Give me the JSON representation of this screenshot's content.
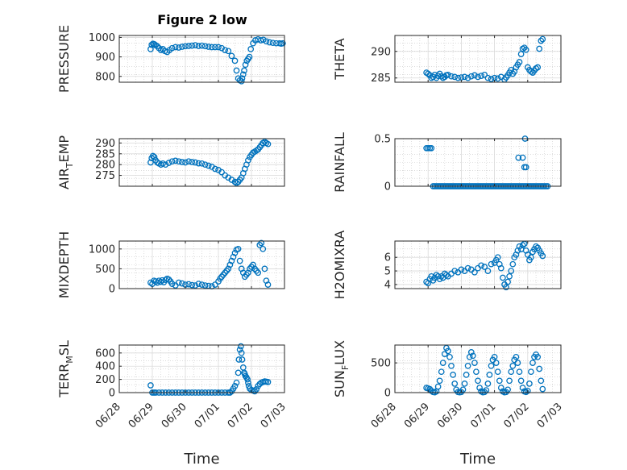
{
  "figure": {
    "title": "Figure 2 low",
    "marker_color": "#0072BD",
    "axis_color": "#262626",
    "grid_color": "#c8c8c8"
  },
  "chart_data": [
    {
      "type": "scatter",
      "ylabel": "PRESSURE",
      "ylabel_sub": "",
      "ylabel_tail": "",
      "ylim": [
        770,
        1010
      ],
      "yticks": [
        800,
        900,
        1000
      ],
      "grid": true,
      "xticks_shown": false,
      "x": [
        0.95,
        0.98,
        1.02,
        1.06,
        1.1,
        1.15,
        1.2,
        1.26,
        1.32,
        1.38,
        1.45,
        1.52,
        1.6,
        1.7,
        1.8,
        1.9,
        2.0,
        2.1,
        2.2,
        2.3,
        2.4,
        2.5,
        2.6,
        2.7,
        2.8,
        2.9,
        3.0,
        3.1,
        3.2,
        3.3,
        3.4,
        3.5,
        3.55,
        3.6,
        3.65,
        3.7,
        3.72,
        3.75,
        3.78,
        3.82,
        3.86,
        3.9,
        3.94,
        3.98,
        4.05,
        4.12,
        4.2,
        4.28,
        4.36,
        4.45,
        4.55,
        4.65,
        4.75,
        4.85,
        4.9,
        4.95
      ],
      "y": [
        940,
        962,
        968,
        965,
        960,
        955,
        945,
        935,
        940,
        930,
        925,
        935,
        945,
        950,
        948,
        952,
        955,
        956,
        958,
        960,
        956,
        958,
        955,
        952,
        950,
        950,
        950,
        945,
        935,
        930,
        905,
        880,
        830,
        790,
        780,
        775,
        790,
        810,
        830,
        860,
        880,
        890,
        900,
        940,
        970,
        985,
        990,
        985,
        988,
        980,
        975,
        972,
        970,
        970,
        968,
        970
      ]
    },
    {
      "type": "scatter",
      "ylabel": "THETA",
      "ylabel_sub": "",
      "ylabel_tail": "",
      "ylim": [
        284.2,
        293
      ],
      "yticks": [
        285,
        290
      ],
      "grid": true,
      "xticks_shown": false,
      "x": [
        0.95,
        1.0,
        1.05,
        1.1,
        1.15,
        1.2,
        1.25,
        1.3,
        1.35,
        1.4,
        1.45,
        1.5,
        1.55,
        1.6,
        1.7,
        1.8,
        1.9,
        2.0,
        2.1,
        2.2,
        2.3,
        2.4,
        2.5,
        2.6,
        2.7,
        2.8,
        2.9,
        3.0,
        3.1,
        3.2,
        3.3,
        3.35,
        3.4,
        3.45,
        3.5,
        3.55,
        3.6,
        3.65,
        3.7,
        3.75,
        3.8,
        3.85,
        3.9,
        3.95,
        4.0,
        4.05,
        4.1,
        4.15,
        4.2,
        4.25,
        4.3,
        4.35,
        4.4,
        4.45
      ],
      "y": [
        286,
        285.8,
        285.5,
        285,
        285.2,
        285.6,
        285,
        285.4,
        285.8,
        285.3,
        285,
        285.2,
        285.5,
        285.6,
        285.3,
        285.2,
        285,
        285.1,
        285.2,
        285,
        285.3,
        285.5,
        285.2,
        285.4,
        285.6,
        285,
        284.8,
        285,
        284.9,
        285.2,
        284.7,
        285.1,
        285.5,
        286,
        286.5,
        285.8,
        286.2,
        287,
        287.5,
        288,
        289.5,
        290.5,
        290.7,
        290.3,
        287,
        286.5,
        286.2,
        286,
        286.4,
        286.8,
        287,
        290.5,
        292,
        292.3
      ]
    },
    {
      "type": "scatter",
      "ylabel": "AIR",
      "ylabel_sub": "T",
      "ylabel_tail": "EMP",
      "ylim": [
        270,
        292
      ],
      "yticks": [
        275,
        280,
        285,
        290
      ],
      "grid": true,
      "xticks_shown": false,
      "x": [
        0.95,
        0.98,
        1.02,
        1.06,
        1.1,
        1.15,
        1.2,
        1.26,
        1.32,
        1.4,
        1.5,
        1.6,
        1.7,
        1.8,
        1.9,
        2.0,
        2.1,
        2.2,
        2.3,
        2.4,
        2.5,
        2.6,
        2.7,
        2.8,
        2.9,
        3.0,
        3.1,
        3.2,
        3.3,
        3.4,
        3.5,
        3.55,
        3.6,
        3.65,
        3.7,
        3.75,
        3.8,
        3.85,
        3.9,
        3.95,
        4.0,
        4.05,
        4.1,
        4.15,
        4.2,
        4.25,
        4.3,
        4.35,
        4.4,
        4.45,
        4.5
      ],
      "y": [
        281,
        283,
        284,
        283.5,
        282,
        281,
        280.5,
        280,
        280.5,
        280,
        280.8,
        281.5,
        281.8,
        281.5,
        281.2,
        281,
        281.5,
        281.2,
        281,
        280.6,
        280.5,
        280,
        279.5,
        279,
        278,
        277.5,
        276.5,
        275,
        274,
        273,
        272,
        271.5,
        272,
        273,
        274,
        276,
        278,
        280,
        282,
        283.5,
        284.5,
        285.5,
        286,
        286.5,
        287,
        288,
        289,
        290,
        290.5,
        290,
        289.5
      ]
    },
    {
      "type": "scatter",
      "ylabel": "RAINFALL",
      "ylabel_sub": "",
      "ylabel_tail": "",
      "ylim": [
        0,
        0.5
      ],
      "yticks": [
        0,
        0.5
      ],
      "grid": true,
      "xticks_shown": false,
      "x": [
        0.95,
        1.0,
        1.05,
        1.1,
        1.15,
        1.2,
        1.25,
        1.3,
        1.35,
        1.4,
        1.45,
        1.5,
        1.55,
        1.6,
        1.65,
        1.7,
        1.75,
        1.8,
        1.85,
        1.9,
        1.95,
        2.0,
        2.05,
        2.1,
        2.15,
        2.2,
        2.25,
        2.3,
        2.35,
        2.4,
        2.45,
        2.5,
        2.55,
        2.6,
        2.65,
        2.7,
        2.75,
        2.8,
        2.85,
        2.9,
        2.95,
        3.0,
        3.05,
        3.1,
        3.15,
        3.2,
        3.25,
        3.3,
        3.35,
        3.4,
        3.45,
        3.5,
        3.55,
        3.6,
        3.65,
        3.7,
        3.75,
        3.8,
        3.85,
        3.9,
        3.95,
        4.0,
        4.05,
        4.1,
        4.15,
        4.2,
        4.25,
        4.3,
        4.35,
        4.4,
        4.45,
        4.5,
        4.55,
        4.6,
        3.72,
        3.85,
        3.9,
        3.92,
        3.95
      ],
      "y": [
        0.4,
        0.4,
        0.4,
        0.4,
        0,
        0,
        0,
        0,
        0,
        0,
        0,
        0,
        0,
        0,
        0,
        0,
        0,
        0,
        0,
        0,
        0,
        0,
        0,
        0,
        0,
        0,
        0,
        0,
        0,
        0,
        0,
        0,
        0,
        0,
        0,
        0,
        0,
        0,
        0,
        0,
        0,
        0,
        0,
        0,
        0,
        0,
        0,
        0,
        0,
        0,
        0,
        0,
        0,
        0,
        0,
        0,
        0,
        0,
        0,
        0,
        0,
        0,
        0,
        0,
        0,
        0,
        0,
        0,
        0,
        0,
        0,
        0,
        0,
        0,
        0.3,
        0.3,
        0.2,
        0.5,
        0.2
      ]
    },
    {
      "type": "scatter",
      "ylabel": "MIXDEPTH",
      "ylabel_sub": "",
      "ylabel_tail": "",
      "ylim": [
        0,
        1200
      ],
      "yticks": [
        0,
        500,
        1000
      ],
      "grid": true,
      "xticks_shown": false,
      "x": [
        0.95,
        1.0,
        1.05,
        1.1,
        1.15,
        1.2,
        1.25,
        1.3,
        1.35,
        1.4,
        1.45,
        1.5,
        1.55,
        1.6,
        1.7,
        1.8,
        1.9,
        2.0,
        2.1,
        2.2,
        2.3,
        2.4,
        2.5,
        2.6,
        2.7,
        2.8,
        2.9,
        3.0,
        3.05,
        3.1,
        3.15,
        3.2,
        3.25,
        3.3,
        3.35,
        3.4,
        3.45,
        3.5,
        3.55,
        3.6,
        3.65,
        3.7,
        3.75,
        3.8,
        3.85,
        3.9,
        3.95,
        4.0,
        4.05,
        4.1,
        4.15,
        4.2,
        4.25,
        4.3,
        4.35,
        4.4,
        4.45,
        4.5
      ],
      "y": [
        150,
        120,
        200,
        180,
        150,
        200,
        170,
        210,
        160,
        220,
        250,
        230,
        180,
        120,
        80,
        150,
        130,
        100,
        110,
        90,
        80,
        120,
        100,
        80,
        70,
        60,
        100,
        180,
        250,
        300,
        350,
        400,
        450,
        500,
        600,
        700,
        800,
        900,
        980,
        1000,
        700,
        500,
        400,
        300,
        350,
        400,
        500,
        550,
        600,
        500,
        450,
        400,
        1100,
        1150,
        1000,
        500,
        200,
        100
      ]
    },
    {
      "type": "scatter",
      "ylabel": "H2OMIXRA",
      "ylabel_sub": "",
      "ylabel_tail": "",
      "ylim": [
        3.7,
        7.2
      ],
      "yticks": [
        4,
        5,
        6
      ],
      "grid": true,
      "xticks_shown": false,
      "x": [
        0.95,
        1.0,
        1.05,
        1.1,
        1.15,
        1.2,
        1.25,
        1.3,
        1.35,
        1.4,
        1.45,
        1.5,
        1.55,
        1.6,
        1.7,
        1.8,
        1.9,
        2.0,
        2.1,
        2.2,
        2.3,
        2.4,
        2.5,
        2.6,
        2.7,
        2.8,
        2.9,
        3.0,
        3.05,
        3.1,
        3.15,
        3.2,
        3.25,
        3.3,
        3.35,
        3.4,
        3.45,
        3.5,
        3.55,
        3.6,
        3.65,
        3.7,
        3.75,
        3.8,
        3.85,
        3.9,
        3.95,
        4.0,
        4.05,
        4.1,
        4.15,
        4.2,
        4.25,
        4.3,
        4.35,
        4.4,
        4.45
      ],
      "y": [
        4.2,
        4.1,
        4.4,
        4.6,
        4.3,
        4.5,
        4.7,
        4.6,
        4.4,
        4.6,
        4.5,
        4.8,
        4.7,
        4.6,
        4.8,
        5.0,
        4.9,
        5.1,
        5.0,
        5.2,
        5.1,
        4.9,
        5.2,
        5.4,
        5.3,
        5.0,
        5.5,
        5.6,
        5.8,
        6.0,
        5.5,
        5.2,
        4.5,
        4.0,
        3.8,
        4.2,
        4.6,
        5.0,
        5.5,
        6.0,
        6.2,
        6.5,
        6.8,
        6.6,
        6.9,
        7.0,
        6.5,
        6.2,
        5.8,
        6.0,
        6.4,
        6.6,
        6.8,
        6.7,
        6.5,
        6.3,
        6.1
      ]
    },
    {
      "type": "scatter",
      "ylabel": "TERR",
      "ylabel_sub": "M",
      "ylabel_tail": "SL",
      "ylim": [
        0,
        720
      ],
      "yticks": [
        0,
        200,
        400,
        600
      ],
      "grid": true,
      "xlabel": "Time",
      "xticks_shown": true,
      "xticks": [
        "06/28",
        "06/29",
        "06/30",
        "07/01",
        "07/02",
        "07/03"
      ],
      "x": [
        0.95,
        1.0,
        1.05,
        1.1,
        1.2,
        1.3,
        1.4,
        1.5,
        1.6,
        1.7,
        1.8,
        1.9,
        2.0,
        2.1,
        2.2,
        2.3,
        2.4,
        2.5,
        2.6,
        2.7,
        2.8,
        2.9,
        3.0,
        3.1,
        3.2,
        3.3,
        3.35,
        3.4,
        3.45,
        3.5,
        3.55,
        3.6,
        3.62,
        3.65,
        3.68,
        3.7,
        3.72,
        3.75,
        3.78,
        3.8,
        3.82,
        3.85,
        3.88,
        3.9,
        3.92,
        3.95,
        4.0,
        4.05,
        4.1,
        4.15,
        4.2,
        4.25,
        4.3,
        4.35,
        4.4,
        4.45,
        4.5
      ],
      "y": [
        110,
        0,
        0,
        0,
        0,
        0,
        0,
        0,
        0,
        0,
        0,
        0,
        0,
        0,
        0,
        0,
        0,
        0,
        0,
        0,
        0,
        0,
        0,
        0,
        0,
        0,
        0,
        20,
        60,
        100,
        150,
        300,
        500,
        650,
        700,
        600,
        500,
        380,
        300,
        280,
        250,
        230,
        200,
        150,
        100,
        60,
        40,
        30,
        20,
        50,
        100,
        130,
        150,
        160,
        170,
        165,
        160
      ]
    },
    {
      "type": "scatter",
      "ylabel": "SUN",
      "ylabel_sub": "F",
      "ylabel_tail": "LUX",
      "ylim": [
        0,
        800
      ],
      "yticks": [
        0,
        500
      ],
      "grid": true,
      "xlabel": "Time",
      "xticks_shown": true,
      "xticks": [
        "06/28",
        "06/29",
        "06/30",
        "07/01",
        "07/02",
        "07/03"
      ],
      "x": [
        0.95,
        1.0,
        1.05,
        1.1,
        1.15,
        1.2,
        1.25,
        1.3,
        1.35,
        1.4,
        1.45,
        1.5,
        1.55,
        1.6,
        1.65,
        1.7,
        1.75,
        1.8,
        1.85,
        1.9,
        1.95,
        2.0,
        2.05,
        2.1,
        2.15,
        2.2,
        2.25,
        2.3,
        2.35,
        2.4,
        2.45,
        2.5,
        2.55,
        2.6,
        2.65,
        2.7,
        2.75,
        2.8,
        2.85,
        2.9,
        2.95,
        3.0,
        3.05,
        3.1,
        3.15,
        3.2,
        3.25,
        3.3,
        3.35,
        3.4,
        3.45,
        3.5,
        3.55,
        3.6,
        3.65,
        3.7,
        3.75,
        3.8,
        3.85,
        3.9,
        3.95,
        4.0,
        4.05,
        4.1,
        4.15,
        4.2,
        4.25,
        4.3,
        4.35,
        4.4,
        4.45
      ],
      "y": [
        80,
        70,
        60,
        30,
        10,
        5,
        20,
        100,
        200,
        350,
        500,
        650,
        750,
        700,
        600,
        450,
        300,
        150,
        50,
        10,
        5,
        10,
        50,
        150,
        300,
        450,
        600,
        680,
        620,
        500,
        350,
        200,
        80,
        20,
        5,
        10,
        40,
        150,
        300,
        450,
        550,
        600,
        500,
        350,
        200,
        80,
        20,
        5,
        10,
        50,
        200,
        350,
        450,
        550,
        600,
        500,
        350,
        200,
        80,
        20,
        10,
        30,
        150,
        350,
        500,
        600,
        640,
        600,
        400,
        200,
        60
      ]
    }
  ]
}
